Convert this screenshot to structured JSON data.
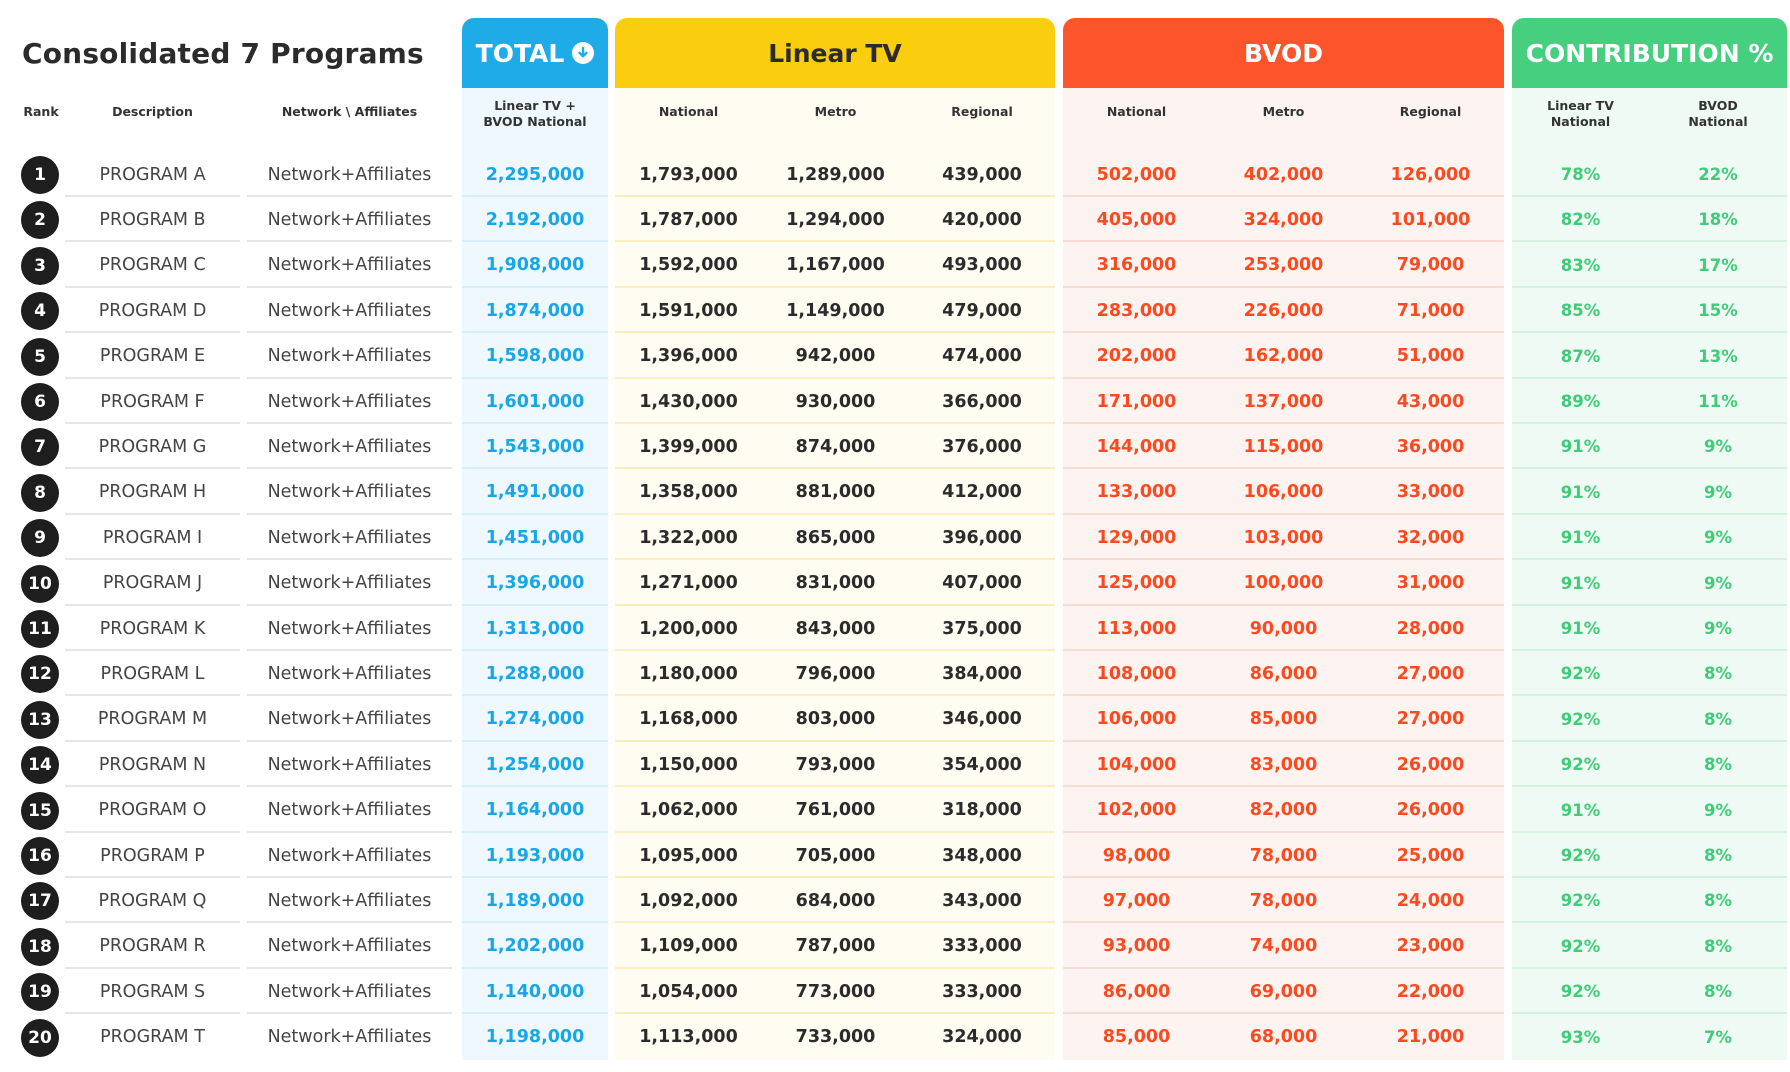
{
  "title": "Consolidated 7 Programs",
  "sections": {
    "total": "TOTAL",
    "linear": "Linear TV",
    "bvod": "BVOD",
    "contribution": "CONTRIBUTION %"
  },
  "colors": {
    "total": "#1faae8",
    "linear": "#fbcd0f",
    "bvod": "#fd552b",
    "contribution": "#46cf7e"
  },
  "headers": {
    "rank": "Rank",
    "description": "Description",
    "network": "Network \\ Affiliates",
    "total_line1": "Linear TV +",
    "total_line2": "BVOD National",
    "linear_national": "National",
    "linear_metro": "Metro",
    "linear_regional": "Regional",
    "bvod_national": "National",
    "bvod_metro": "Metro",
    "bvod_regional": "Regional",
    "contrib_linear_line1": "Linear TV",
    "contrib_linear_line2": "National",
    "contrib_bvod_line1": "BVOD",
    "contrib_bvod_line2": "National"
  },
  "rows": [
    {
      "rank": "1",
      "desc": "PROGRAM A",
      "net": "Network+Affiliates",
      "total": "2,295,000",
      "ln": "1,793,000",
      "lm": "1,289,000",
      "lr": "439,000",
      "bn": "502,000",
      "bm": "402,000",
      "br": "126,000",
      "cl": "78%",
      "cb": "22%"
    },
    {
      "rank": "2",
      "desc": "PROGRAM B",
      "net": "Network+Affiliates",
      "total": "2,192,000",
      "ln": "1,787,000",
      "lm": "1,294,000",
      "lr": "420,000",
      "bn": "405,000",
      "bm": "324,000",
      "br": "101,000",
      "cl": "82%",
      "cb": "18%"
    },
    {
      "rank": "3",
      "desc": "PROGRAM C",
      "net": "Network+Affiliates",
      "total": "1,908,000",
      "ln": "1,592,000",
      "lm": "1,167,000",
      "lr": "493,000",
      "bn": "316,000",
      "bm": "253,000",
      "br": "79,000",
      "cl": "83%",
      "cb": "17%"
    },
    {
      "rank": "4",
      "desc": "PROGRAM D",
      "net": "Network+Affiliates",
      "total": "1,874,000",
      "ln": "1,591,000",
      "lm": "1,149,000",
      "lr": "479,000",
      "bn": "283,000",
      "bm": "226,000",
      "br": "71,000",
      "cl": "85%",
      "cb": "15%"
    },
    {
      "rank": "5",
      "desc": "PROGRAM E",
      "net": "Network+Affiliates",
      "total": "1,598,000",
      "ln": "1,396,000",
      "lm": "942,000",
      "lr": "474,000",
      "bn": "202,000",
      "bm": "162,000",
      "br": "51,000",
      "cl": "87%",
      "cb": "13%"
    },
    {
      "rank": "6",
      "desc": "PROGRAM F",
      "net": "Network+Affiliates",
      "total": "1,601,000",
      "ln": "1,430,000",
      "lm": "930,000",
      "lr": "366,000",
      "bn": "171,000",
      "bm": "137,000",
      "br": "43,000",
      "cl": "89%",
      "cb": "11%"
    },
    {
      "rank": "7",
      "desc": "PROGRAM G",
      "net": "Network+Affiliates",
      "total": "1,543,000",
      "ln": "1,399,000",
      "lm": "874,000",
      "lr": "376,000",
      "bn": "144,000",
      "bm": "115,000",
      "br": "36,000",
      "cl": "91%",
      "cb": "9%"
    },
    {
      "rank": "8",
      "desc": "PROGRAM H",
      "net": "Network+Affiliates",
      "total": "1,491,000",
      "ln": "1,358,000",
      "lm": "881,000",
      "lr": "412,000",
      "bn": "133,000",
      "bm": "106,000",
      "br": "33,000",
      "cl": "91%",
      "cb": "9%"
    },
    {
      "rank": "9",
      "desc": "PROGRAM I",
      "net": "Network+Affiliates",
      "total": "1,451,000",
      "ln": "1,322,000",
      "lm": "865,000",
      "lr": "396,000",
      "bn": "129,000",
      "bm": "103,000",
      "br": "32,000",
      "cl": "91%",
      "cb": "9%"
    },
    {
      "rank": "10",
      "desc": "PROGRAM J",
      "net": "Network+Affiliates",
      "total": "1,396,000",
      "ln": "1,271,000",
      "lm": "831,000",
      "lr": "407,000",
      "bn": "125,000",
      "bm": "100,000",
      "br": "31,000",
      "cl": "91%",
      "cb": "9%"
    },
    {
      "rank": "11",
      "desc": "PROGRAM K",
      "net": "Network+Affiliates",
      "total": "1,313,000",
      "ln": "1,200,000",
      "lm": "843,000",
      "lr": "375,000",
      "bn": "113,000",
      "bm": "90,000",
      "br": "28,000",
      "cl": "91%",
      "cb": "9%"
    },
    {
      "rank": "12",
      "desc": "PROGRAM L",
      "net": "Network+Affiliates",
      "total": "1,288,000",
      "ln": "1,180,000",
      "lm": "796,000",
      "lr": "384,000",
      "bn": "108,000",
      "bm": "86,000",
      "br": "27,000",
      "cl": "92%",
      "cb": "8%"
    },
    {
      "rank": "13",
      "desc": "PROGRAM M",
      "net": "Network+Affiliates",
      "total": "1,274,000",
      "ln": "1,168,000",
      "lm": "803,000",
      "lr": "346,000",
      "bn": "106,000",
      "bm": "85,000",
      "br": "27,000",
      "cl": "92%",
      "cb": "8%"
    },
    {
      "rank": "14",
      "desc": "PROGRAM N",
      "net": "Network+Affiliates",
      "total": "1,254,000",
      "ln": "1,150,000",
      "lm": "793,000",
      "lr": "354,000",
      "bn": "104,000",
      "bm": "83,000",
      "br": "26,000",
      "cl": "92%",
      "cb": "8%"
    },
    {
      "rank": "15",
      "desc": "PROGRAM O",
      "net": "Network+Affiliates",
      "total": "1,164,000",
      "ln": "1,062,000",
      "lm": "761,000",
      "lr": "318,000",
      "bn": "102,000",
      "bm": "82,000",
      "br": "26,000",
      "cl": "91%",
      "cb": "9%"
    },
    {
      "rank": "16",
      "desc": "PROGRAM P",
      "net": "Network+Affiliates",
      "total": "1,193,000",
      "ln": "1,095,000",
      "lm": "705,000",
      "lr": "348,000",
      "bn": "98,000",
      "bm": "78,000",
      "br": "25,000",
      "cl": "92%",
      "cb": "8%"
    },
    {
      "rank": "17",
      "desc": "PROGRAM Q",
      "net": "Network+Affiliates",
      "total": "1,189,000",
      "ln": "1,092,000",
      "lm": "684,000",
      "lr": "343,000",
      "bn": "97,000",
      "bm": "78,000",
      "br": "24,000",
      "cl": "92%",
      "cb": "8%"
    },
    {
      "rank": "18",
      "desc": "PROGRAM R",
      "net": "Network+Affiliates",
      "total": "1,202,000",
      "ln": "1,109,000",
      "lm": "787,000",
      "lr": "333,000",
      "bn": "93,000",
      "bm": "74,000",
      "br": "23,000",
      "cl": "92%",
      "cb": "8%"
    },
    {
      "rank": "19",
      "desc": "PROGRAM S",
      "net": "Network+Affiliates",
      "total": "1,140,000",
      "ln": "1,054,000",
      "lm": "773,000",
      "lr": "333,000",
      "bn": "86,000",
      "bm": "69,000",
      "br": "22,000",
      "cl": "92%",
      "cb": "8%"
    },
    {
      "rank": "20",
      "desc": "PROGRAM T",
      "net": "Network+Affiliates",
      "total": "1,198,000",
      "ln": "1,113,000",
      "lm": "733,000",
      "lr": "324,000",
      "bn": "85,000",
      "bm": "68,000",
      "br": "21,000",
      "cl": "93%",
      "cb": "7%"
    }
  ]
}
